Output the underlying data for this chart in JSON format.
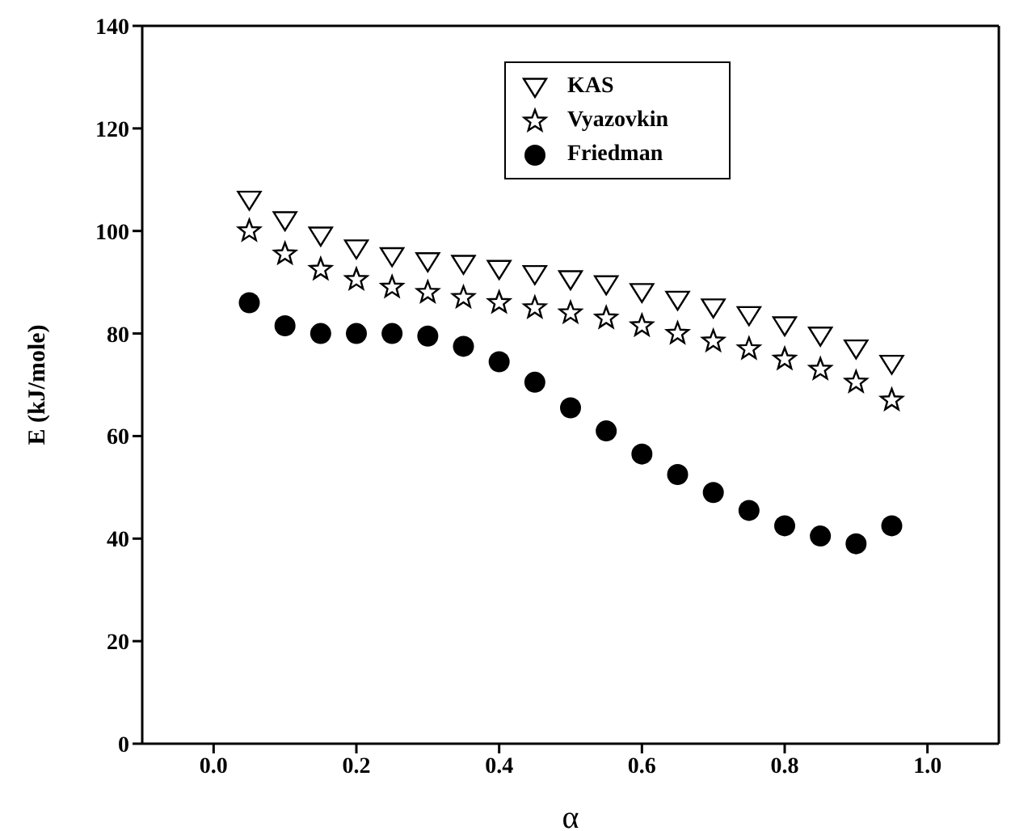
{
  "chart_data": {
    "type": "scatter",
    "xlabel": "α",
    "ylabel": "E  (kJ/mole)",
    "x": [
      0.05,
      0.1,
      0.15,
      0.2,
      0.25,
      0.3,
      0.35,
      0.4,
      0.45,
      0.5,
      0.55,
      0.6,
      0.65,
      0.7,
      0.75,
      0.8,
      0.85,
      0.9,
      0.95
    ],
    "series": [
      {
        "name": "KAS",
        "color": "#000000",
        "marker": "triangle",
        "values": [
          106,
          102,
          99,
          96.5,
          95,
          94,
          93.5,
          92.5,
          91.5,
          90.5,
          89.5,
          88,
          86.5,
          85,
          83.5,
          81.5,
          79.5,
          77,
          74
        ]
      },
      {
        "name": "Vyazovkin",
        "color": "#000000",
        "marker": "star",
        "values": [
          100,
          95.5,
          92.5,
          90.5,
          89,
          88,
          87,
          86,
          85,
          84,
          83,
          81.5,
          80,
          78.5,
          77,
          75,
          73,
          70.5,
          67
        ]
      },
      {
        "name": "Friedman",
        "color": "#000000",
        "marker": "circle",
        "values": [
          86,
          81.5,
          80,
          80,
          80,
          79.5,
          77.5,
          74.5,
          70.5,
          65.5,
          61,
          56.5,
          52.5,
          49,
          45.5,
          42.5,
          40.5,
          39,
          42.5
        ]
      }
    ],
    "xlim": [
      -0.1,
      1.1
    ],
    "xticks": [
      {
        "value": 0,
        "label": "0.0"
      },
      {
        "value": 0.2,
        "label": "0.2"
      },
      {
        "value": 0.4,
        "label": "0.4"
      },
      {
        "value": 0.6,
        "label": "0.6"
      },
      {
        "value": 0.8,
        "label": "0.8"
      },
      {
        "value": 1,
        "label": "1.0"
      }
    ],
    "ylim": [
      0,
      140
    ],
    "yticks": [
      0,
      20,
      40,
      60,
      80,
      100,
      120,
      140
    ],
    "legend": "top"
  }
}
